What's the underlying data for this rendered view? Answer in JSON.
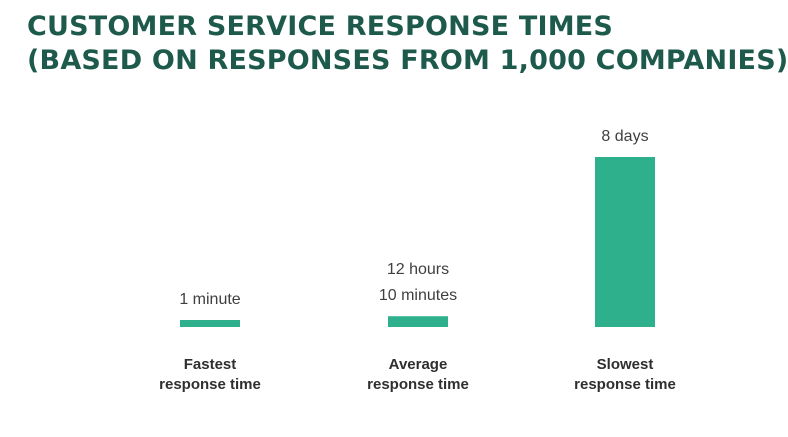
{
  "title": {
    "line1": "CUSTOMER SERVICE RESPONSE TIMES",
    "line2": "(BASED ON RESPONSES FROM 1,000 COMPANIES)"
  },
  "colors": {
    "bar": "#2fb08c",
    "title": "#1e5a4c"
  },
  "chart_data": {
    "type": "bar",
    "title": "CUSTOMER SERVICE RESPONSE TIMES (BASED ON RESPONSES FROM 1,000 COMPANIES)",
    "categories": [
      [
        "Fastest",
        "response time"
      ],
      [
        "Average",
        "response time"
      ],
      [
        "Slowest",
        "response time"
      ]
    ],
    "value_labels": [
      [
        "1 minute"
      ],
      [
        "12 hours",
        "10 minutes"
      ],
      [
        "8 days"
      ]
    ],
    "values_minutes": [
      1,
      730,
      11520
    ],
    "xlabel": "",
    "ylabel": ""
  }
}
